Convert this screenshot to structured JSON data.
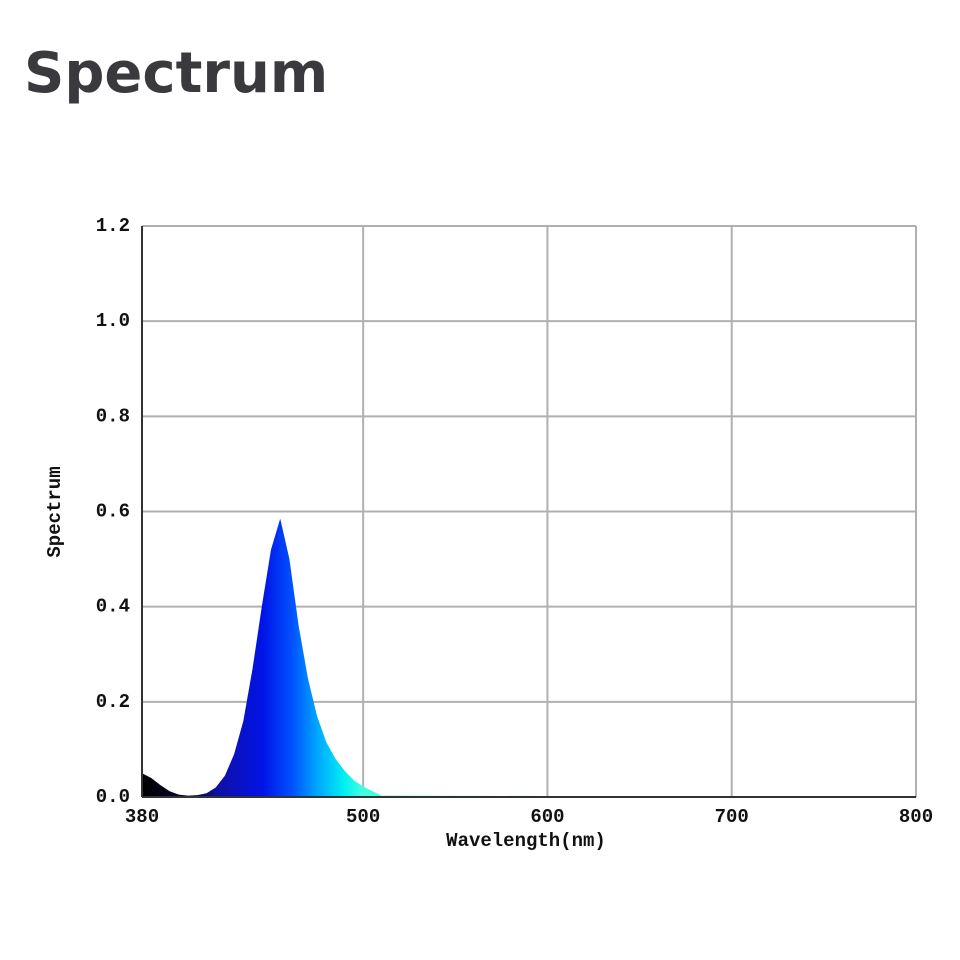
{
  "chart_data": {
    "type": "area",
    "title": "Spectrum",
    "x_label": "Wavelength(nm)",
    "y_label": "Spectrum",
    "x": [
      380,
      385,
      390,
      395,
      400,
      405,
      410,
      415,
      420,
      425,
      430,
      435,
      440,
      445,
      450,
      455,
      460,
      465,
      470,
      475,
      480,
      485,
      490,
      495,
      500,
      510,
      600,
      800
    ],
    "values": [
      0.05,
      0.04,
      0.025,
      0.012,
      0.005,
      0.003,
      0.004,
      0.008,
      0.02,
      0.045,
      0.09,
      0.16,
      0.27,
      0.4,
      0.52,
      0.585,
      0.5,
      0.36,
      0.25,
      0.17,
      0.115,
      0.08,
      0.055,
      0.035,
      0.022,
      0.003,
      0.002,
      0.001
    ],
    "xlim": [
      380,
      800
    ],
    "ylim": [
      0,
      1.2
    ],
    "xticks": [
      380,
      500,
      600,
      700,
      800
    ],
    "yticks": [
      {
        "value": 0,
        "label": "0.0"
      },
      0.2,
      0.4,
      0.6,
      0.8,
      {
        "value": 1,
        "label": "1.0"
      },
      1.2
    ],
    "grid": true
  }
}
